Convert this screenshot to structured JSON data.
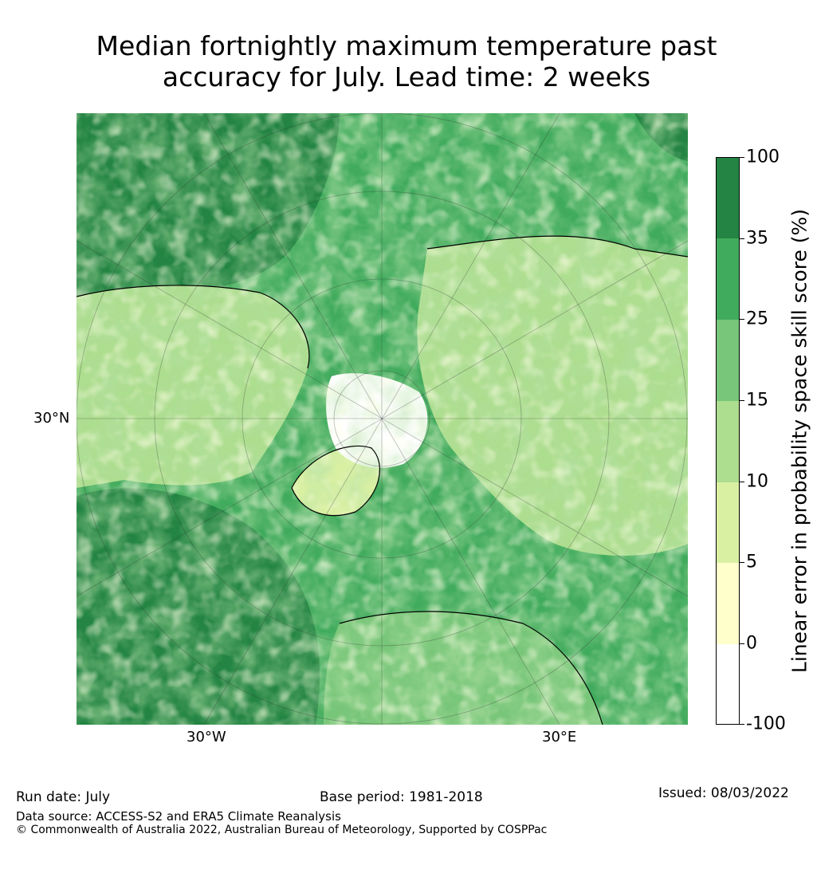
{
  "title_line1": "Median fortnightly maximum temperature past",
  "title_line2": "accuracy for July. Lead time: 2 weeks",
  "map": {
    "lat_label": "30°N",
    "lon_label_west": "30°W",
    "lon_label_east": "30°E"
  },
  "colorbar": {
    "label": "Linear error in probability space skill score (%)",
    "ticks": [
      "100",
      "35",
      "25",
      "15",
      "10",
      "5",
      "0",
      "-100"
    ],
    "colors": [
      "#238443",
      "#41ab5d",
      "#78c679",
      "#addd8e",
      "#d9f0a3",
      "#ffffcc",
      "#ffffff"
    ]
  },
  "footer": {
    "run_date": "Run date: July",
    "base_period": "Base period: 1981-2018",
    "issued": "Issued: 08/03/2022",
    "data_source": "Data source: ACCESS-S2 and ERA5 Climate Reanalysis",
    "copyright": "© Commonwealth of Australia 2022, Australian Bureau of Meteorology, Supported by COSPPac"
  }
}
